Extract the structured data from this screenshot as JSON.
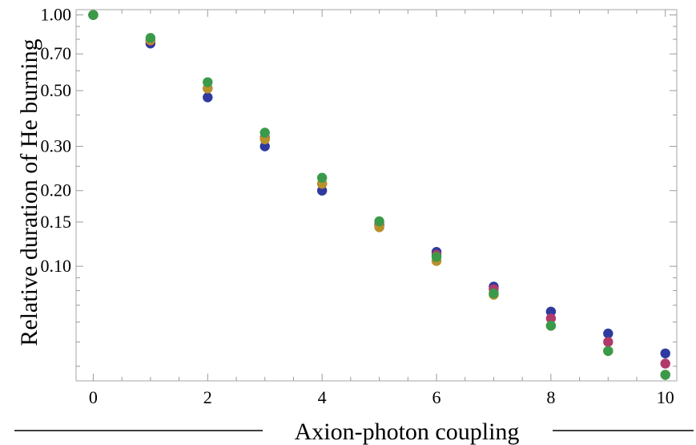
{
  "chart_data": {
    "type": "scatter",
    "xlabel": "Axion-photon coupling",
    "ylabel": "Relative duration of He burning",
    "xlim": [
      -0.3,
      10.2
    ],
    "ylim": [
      0.035,
      1.05
    ],
    "y_scale": "log",
    "grid": false,
    "x_ticks": [
      0,
      2,
      4,
      6,
      8,
      10
    ],
    "x_tick_labels": [
      "0",
      "2",
      "4",
      "6",
      "8",
      "10"
    ],
    "x_minor_ticks": [
      0.5,
      1,
      1.5,
      2.5,
      3,
      3.5,
      4.5,
      5,
      5.5,
      6.5,
      7,
      7.5,
      8.5,
      9,
      9.5
    ],
    "y_ticks": [
      1.0,
      0.7,
      0.5,
      0.3,
      0.2,
      0.15,
      0.1
    ],
    "y_tick_labels": [
      "1.00",
      "0.70",
      "0.50",
      "0.30",
      "0.20",
      "0.15",
      "0.10"
    ],
    "y_minor_ticks": [
      0.9,
      0.8,
      0.6,
      0.4,
      0.25,
      0.09,
      0.08,
      0.07,
      0.06,
      0.05,
      0.04
    ],
    "series": [
      {
        "color": "#2e3a9e",
        "points": [
          [
            0,
            1.0
          ],
          [
            1,
            0.77
          ],
          [
            2,
            0.47
          ],
          [
            3,
            0.3
          ],
          [
            4,
            0.2
          ],
          [
            5,
            0.145
          ],
          [
            6,
            0.114
          ],
          [
            7,
            0.083
          ],
          [
            8,
            0.066
          ],
          [
            9,
            0.054
          ],
          [
            10,
            0.045
          ]
        ]
      },
      {
        "color": "#b03a6a",
        "points": [
          [
            0,
            1.0
          ],
          [
            1,
            0.79
          ],
          [
            2,
            0.51
          ],
          [
            3,
            0.325
          ],
          [
            4,
            0.213
          ],
          [
            5,
            0.147
          ],
          [
            6,
            0.111
          ],
          [
            7,
            0.081
          ],
          [
            8,
            0.062
          ],
          [
            9,
            0.05
          ],
          [
            10,
            0.041
          ]
        ]
      },
      {
        "color": "#b8902a",
        "points": [
          [
            0,
            1.0
          ],
          [
            1,
            0.795
          ],
          [
            2,
            0.51
          ],
          [
            3,
            0.32
          ],
          [
            4,
            0.213
          ],
          [
            5,
            0.143
          ],
          [
            6,
            0.105
          ],
          [
            7,
            0.077
          ],
          [
            8,
            0.058
          ],
          [
            9,
            0.046
          ],
          [
            10,
            0.037
          ]
        ]
      },
      {
        "color": "#3a9a4a",
        "points": [
          [
            0,
            1.0
          ],
          [
            1,
            0.81
          ],
          [
            2,
            0.54
          ],
          [
            3,
            0.34
          ],
          [
            4,
            0.225
          ],
          [
            5,
            0.151
          ],
          [
            6,
            0.109
          ],
          [
            7,
            0.078
          ],
          [
            8,
            0.058
          ],
          [
            9,
            0.046
          ],
          [
            10,
            0.037
          ]
        ]
      }
    ]
  }
}
